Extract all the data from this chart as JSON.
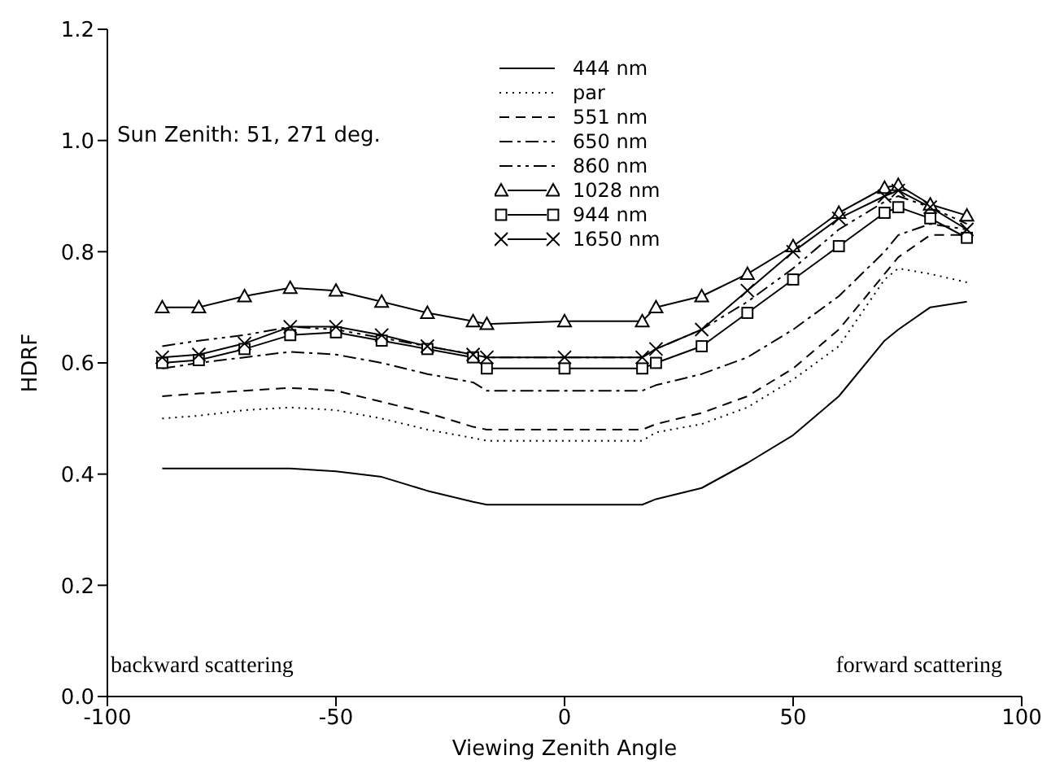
{
  "chart_data": {
    "type": "line",
    "xlabel": "Viewing Zenith Angle",
    "ylabel": "HDRF",
    "x": [
      -88,
      -80,
      -70,
      -60,
      -50,
      -40,
      -30,
      -20,
      -17,
      0,
      17,
      20,
      30,
      40,
      50,
      60,
      70,
      73,
      80,
      88
    ],
    "series": [
      {
        "name": "444 nm",
        "color": "#000000",
        "line_style": "solid",
        "marker": "none",
        "values": [
          0.41,
          0.41,
          0.41,
          0.41,
          0.405,
          0.395,
          0.37,
          0.35,
          0.345,
          0.345,
          0.345,
          0.355,
          0.375,
          0.42,
          0.47,
          0.54,
          0.64,
          0.66,
          0.7,
          0.71
        ]
      },
      {
        "name": "par",
        "color": "#000000",
        "line_style": "dotted",
        "marker": "none",
        "values": [
          0.5,
          0.505,
          0.515,
          0.52,
          0.515,
          0.5,
          0.48,
          0.465,
          0.46,
          0.46,
          0.46,
          0.475,
          0.49,
          0.52,
          0.57,
          0.63,
          0.75,
          0.77,
          0.76,
          0.745
        ]
      },
      {
        "name": "551 nm",
        "color": "#000000",
        "line_style": "dashed",
        "marker": "none",
        "values": [
          0.54,
          0.545,
          0.55,
          0.555,
          0.55,
          0.53,
          0.51,
          0.485,
          0.48,
          0.48,
          0.48,
          0.49,
          0.51,
          0.54,
          0.59,
          0.66,
          0.76,
          0.79,
          0.83,
          0.83
        ]
      },
      {
        "name": "650 nm",
        "color": "#000000",
        "line_style": "dashdot",
        "marker": "none",
        "values": [
          0.59,
          0.6,
          0.61,
          0.62,
          0.615,
          0.6,
          0.58,
          0.565,
          0.55,
          0.55,
          0.55,
          0.56,
          0.58,
          0.61,
          0.66,
          0.72,
          0.8,
          0.83,
          0.85,
          0.84
        ]
      },
      {
        "name": "860 nm",
        "color": "#000000",
        "line_style": "dashdotdot",
        "marker": "none",
        "values": [
          0.63,
          0.64,
          0.65,
          0.665,
          0.66,
          0.645,
          0.63,
          0.615,
          0.61,
          0.61,
          0.61,
          0.625,
          0.66,
          0.71,
          0.77,
          0.84,
          0.89,
          0.9,
          0.88,
          0.85
        ]
      },
      {
        "name": "1028 nm",
        "color": "#000000",
        "line_style": "solid",
        "marker": "triangle",
        "values": [
          0.7,
          0.7,
          0.72,
          0.735,
          0.73,
          0.71,
          0.69,
          0.675,
          0.67,
          0.675,
          0.675,
          0.7,
          0.72,
          0.76,
          0.81,
          0.87,
          0.915,
          0.92,
          0.885,
          0.865
        ]
      },
      {
        "name": "944 nm",
        "color": "#000000",
        "line_style": "solid",
        "marker": "square",
        "values": [
          0.6,
          0.605,
          0.625,
          0.65,
          0.655,
          0.64,
          0.625,
          0.61,
          0.59,
          0.59,
          0.59,
          0.6,
          0.63,
          0.69,
          0.75,
          0.81,
          0.87,
          0.88,
          0.86,
          0.825
        ]
      },
      {
        "name": "1650 nm",
        "color": "#000000",
        "line_style": "solid",
        "marker": "cross",
        "values": [
          0.61,
          0.615,
          0.635,
          0.665,
          0.665,
          0.65,
          0.63,
          0.615,
          0.61,
          0.61,
          0.61,
          0.625,
          0.66,
          0.73,
          0.8,
          0.86,
          0.9,
          0.91,
          0.88,
          0.84
        ]
      }
    ],
    "xlim": [
      -100,
      100
    ],
    "xticks": [
      -100,
      -50,
      0,
      50,
      100
    ],
    "ylim": [
      0,
      1.2
    ],
    "yticks": [
      {
        "value": 0,
        "label": "0.0"
      },
      {
        "value": 0.2,
        "label": "0.2"
      },
      {
        "value": 0.4,
        "label": "0.4"
      },
      {
        "value": 0.6,
        "label": "0.6"
      },
      {
        "value": 0.8,
        "label": "0.8"
      },
      {
        "value": 1.0,
        "label": "1.0"
      },
      {
        "value": 1.2,
        "label": "1.2"
      }
    ],
    "grid": false,
    "legend": "top",
    "annotations": [
      "Sun Zenith: 51, 271 deg.",
      "backward scattering",
      "forward scattering"
    ]
  }
}
